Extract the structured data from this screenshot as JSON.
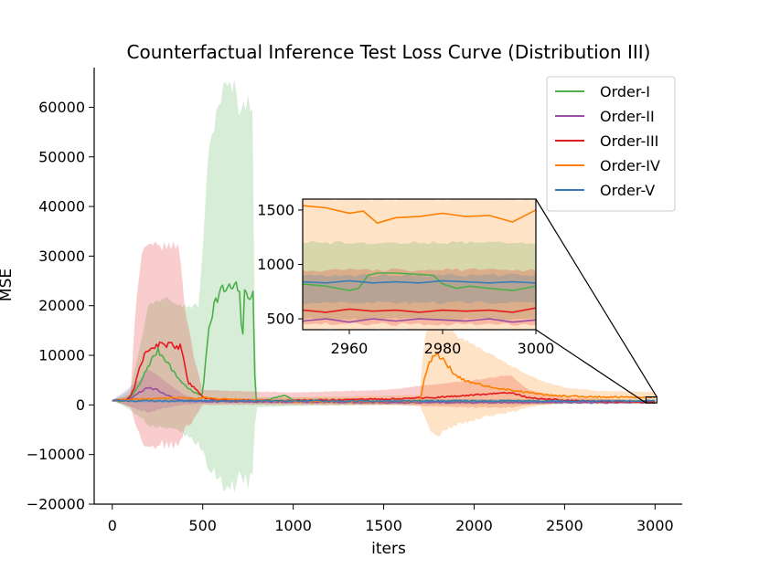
{
  "chart_data": {
    "type": "line",
    "title": "Counterfactual Inference Test Loss Curve (Distribution III)",
    "xlabel": "iters",
    "ylabel": "MSE",
    "xlim": [
      -100,
      3150
    ],
    "ylim": [
      -20000,
      68000
    ],
    "x_ticks": [
      0,
      500,
      1000,
      1500,
      2000,
      2500,
      3000
    ],
    "y_ticks": [
      -20000,
      -10000,
      0,
      10000,
      20000,
      30000,
      40000,
      50000,
      60000
    ],
    "legend_position": "top-right",
    "series": [
      {
        "name": "Order-I",
        "color": "#4daf4a",
        "points": [
          [
            0,
            900
          ],
          [
            50,
            700
          ],
          [
            100,
            1500
          ],
          [
            150,
            4000
          ],
          [
            200,
            8000
          ],
          [
            250,
            11000
          ],
          [
            300,
            9000
          ],
          [
            350,
            6000
          ],
          [
            400,
            4000
          ],
          [
            450,
            2500
          ],
          [
            500,
            2000
          ],
          [
            530,
            15000
          ],
          [
            560,
            20000
          ],
          [
            600,
            23000
          ],
          [
            650,
            23500
          ],
          [
            700,
            23500
          ],
          [
            720,
            13000
          ],
          [
            730,
            22000
          ],
          [
            760,
            22500
          ],
          [
            780,
            22000
          ],
          [
            790,
            500
          ],
          [
            850,
            800
          ],
          [
            900,
            1500
          ],
          [
            950,
            2000
          ],
          [
            1000,
            900
          ],
          [
            1200,
            800
          ],
          [
            1500,
            700
          ],
          [
            2000,
            700
          ],
          [
            2500,
            700
          ],
          [
            2950,
            700
          ],
          [
            3000,
            800
          ]
        ],
        "band": [
          [
            0,
            900,
            900
          ],
          [
            100,
            3000,
            -1000
          ],
          [
            200,
            20000,
            -4000
          ],
          [
            300,
            22000,
            -5000
          ],
          [
            400,
            20000,
            -6000
          ],
          [
            480,
            20000,
            -8000
          ],
          [
            530,
            50000,
            -12000
          ],
          [
            580,
            60000,
            -15000
          ],
          [
            620,
            64000,
            -16000
          ],
          [
            680,
            64000,
            -16000
          ],
          [
            700,
            60000,
            -15000
          ],
          [
            740,
            61000,
            -15500
          ],
          [
            780,
            61000,
            -15500
          ],
          [
            790,
            1500,
            -500
          ],
          [
            1000,
            1500,
            -200
          ],
          [
            1500,
            1200,
            0
          ],
          [
            2000,
            1200,
            100
          ],
          [
            2500,
            1200,
            150
          ],
          [
            3000,
            1200,
            200
          ]
        ]
      },
      {
        "name": "Order-II",
        "color": "#984ea3",
        "points": [
          [
            0,
            900
          ],
          [
            100,
            1200
          ],
          [
            150,
            2500
          ],
          [
            200,
            3500
          ],
          [
            250,
            3000
          ],
          [
            300,
            2000
          ],
          [
            350,
            1200
          ],
          [
            400,
            900
          ],
          [
            500,
            700
          ],
          [
            1000,
            600
          ],
          [
            1500,
            500
          ],
          [
            2000,
            500
          ],
          [
            2500,
            500
          ],
          [
            3000,
            500
          ]
        ],
        "band": [
          [
            0,
            900,
            900
          ],
          [
            150,
            5000,
            -1000
          ],
          [
            200,
            7000,
            -1500
          ],
          [
            250,
            6000,
            -1000
          ],
          [
            300,
            4500,
            -500
          ],
          [
            400,
            2000,
            0
          ],
          [
            500,
            1000,
            300
          ],
          [
            3000,
            800,
            300
          ]
        ]
      },
      {
        "name": "Order-III",
        "color": "#e41a1c",
        "points": [
          [
            0,
            900
          ],
          [
            80,
            1000
          ],
          [
            120,
            3000
          ],
          [
            150,
            8000
          ],
          [
            200,
            11500
          ],
          [
            250,
            12000
          ],
          [
            300,
            12000
          ],
          [
            350,
            12000
          ],
          [
            380,
            11500
          ],
          [
            400,
            8000
          ],
          [
            420,
            4500
          ],
          [
            450,
            3500
          ],
          [
            480,
            2500
          ],
          [
            500,
            1500
          ],
          [
            600,
            1000
          ],
          [
            800,
            900
          ],
          [
            1000,
            900
          ],
          [
            1200,
            1000
          ],
          [
            1500,
            1200
          ],
          [
            1800,
            1500
          ],
          [
            2000,
            2000
          ],
          [
            2200,
            2500
          ],
          [
            2300,
            1500
          ],
          [
            2500,
            900
          ],
          [
            2700,
            700
          ],
          [
            3000,
            600
          ]
        ],
        "band": [
          [
            0,
            900,
            900
          ],
          [
            100,
            2000,
            -500
          ],
          [
            130,
            20000,
            -4000
          ],
          [
            160,
            30000,
            -7000
          ],
          [
            200,
            32000,
            -8000
          ],
          [
            300,
            32000,
            -8000
          ],
          [
            370,
            32000,
            -8000
          ],
          [
            400,
            20000,
            -5000
          ],
          [
            450,
            10000,
            -3000
          ],
          [
            500,
            3000,
            0
          ],
          [
            1000,
            2500,
            0
          ],
          [
            1500,
            3000,
            0
          ],
          [
            2000,
            5000,
            -500
          ],
          [
            2200,
            6000,
            -500
          ],
          [
            2300,
            3000,
            0
          ],
          [
            2500,
            1500,
            300
          ],
          [
            3000,
            900,
            300
          ]
        ]
      },
      {
        "name": "Order-IV",
        "color": "#ff7f00",
        "points": [
          [
            0,
            900
          ],
          [
            200,
            1200
          ],
          [
            400,
            1500
          ],
          [
            450,
            1200
          ],
          [
            500,
            1500
          ],
          [
            600,
            1200
          ],
          [
            800,
            900
          ],
          [
            1000,
            700
          ],
          [
            1500,
            700
          ],
          [
            1700,
            800
          ],
          [
            1730,
            6000
          ],
          [
            1760,
            9000
          ],
          [
            1790,
            10000
          ],
          [
            1820,
            9500
          ],
          [
            1850,
            8000
          ],
          [
            1900,
            6000
          ],
          [
            1950,
            5000
          ],
          [
            2000,
            4500
          ],
          [
            2100,
            3500
          ],
          [
            2200,
            3000
          ],
          [
            2300,
            2500
          ],
          [
            2400,
            2000
          ],
          [
            2500,
            1800
          ],
          [
            2700,
            1600
          ],
          [
            2900,
            1550
          ],
          [
            3000,
            1500
          ]
        ],
        "band": [
          [
            0,
            900,
            900
          ],
          [
            1000,
            1500,
            300
          ],
          [
            1700,
            2000,
            0
          ],
          [
            1720,
            12000,
            -2000
          ],
          [
            1760,
            19000,
            -5000
          ],
          [
            1800,
            20000,
            -6000
          ],
          [
            1850,
            17000,
            -5000
          ],
          [
            1900,
            14000,
            -4000
          ],
          [
            2000,
            12000,
            -3000
          ],
          [
            2100,
            10000,
            -2000
          ],
          [
            2200,
            8000,
            -1500
          ],
          [
            2300,
            6000,
            -500
          ],
          [
            2400,
            4500,
            0
          ],
          [
            2500,
            3500,
            500
          ],
          [
            2700,
            2800,
            500
          ],
          [
            2900,
            2700,
            500
          ],
          [
            3000,
            2700,
            500
          ]
        ]
      },
      {
        "name": "Order-V",
        "color": "#377eb8",
        "points": [
          [
            0,
            900
          ],
          [
            100,
            800
          ],
          [
            200,
            800
          ],
          [
            500,
            800
          ],
          [
            1000,
            800
          ],
          [
            1500,
            800
          ],
          [
            2000,
            800
          ],
          [
            2500,
            800
          ],
          [
            3000,
            800
          ]
        ],
        "band": [
          [
            0,
            900,
            900
          ],
          [
            100,
            1200,
            500
          ],
          [
            500,
            1200,
            500
          ],
          [
            1000,
            1100,
            500
          ],
          [
            1500,
            1100,
            500
          ],
          [
            2000,
            1100,
            500
          ],
          [
            2500,
            1000,
            600
          ],
          [
            3000,
            1000,
            600
          ]
        ]
      }
    ],
    "inset": {
      "xlim": [
        2950,
        3000
      ],
      "ylim": [
        400,
        1600
      ],
      "x_ticks": [
        2960,
        2980,
        3000
      ],
      "y_ticks": [
        500,
        1000,
        1500
      ],
      "series": [
        {
          "name": "Order-I",
          "color": "#4daf4a",
          "points": [
            [
              2950,
              820
            ],
            [
              2955,
              800
            ],
            [
              2960,
              760
            ],
            [
              2962,
              780
            ],
            [
              2964,
              900
            ],
            [
              2966,
              920
            ],
            [
              2970,
              920
            ],
            [
              2974,
              910
            ],
            [
              2978,
              900
            ],
            [
              2980,
              820
            ],
            [
              2983,
              780
            ],
            [
              2986,
              800
            ],
            [
              2990,
              780
            ],
            [
              2995,
              760
            ],
            [
              3000,
              800
            ]
          ]
        },
        {
          "name": "Order-II",
          "color": "#984ea3",
          "points": [
            [
              2950,
              480
            ],
            [
              2955,
              500
            ],
            [
              2960,
              470
            ],
            [
              2965,
              500
            ],
            [
              2970,
              480
            ],
            [
              2975,
              500
            ],
            [
              2980,
              490
            ],
            [
              2985,
              480
            ],
            [
              2990,
              500
            ],
            [
              2995,
              470
            ],
            [
              3000,
              490
            ]
          ]
        },
        {
          "name": "Order-III",
          "color": "#e41a1c",
          "points": [
            [
              2950,
              580
            ],
            [
              2955,
              560
            ],
            [
              2960,
              590
            ],
            [
              2965,
              570
            ],
            [
              2970,
              580
            ],
            [
              2975,
              560
            ],
            [
              2980,
              580
            ],
            [
              2985,
              570
            ],
            [
              2990,
              580
            ],
            [
              2995,
              560
            ],
            [
              3000,
              600
            ]
          ]
        },
        {
          "name": "Order-IV",
          "color": "#ff7f00",
          "points": [
            [
              2950,
              1540
            ],
            [
              2955,
              1520
            ],
            [
              2960,
              1470
            ],
            [
              2963,
              1490
            ],
            [
              2966,
              1380
            ],
            [
              2970,
              1430
            ],
            [
              2975,
              1440
            ],
            [
              2980,
              1470
            ],
            [
              2985,
              1440
            ],
            [
              2990,
              1450
            ],
            [
              2995,
              1390
            ],
            [
              3000,
              1500
            ]
          ]
        },
        {
          "name": "Order-V",
          "color": "#377eb8",
          "points": [
            [
              2950,
              840
            ],
            [
              2955,
              830
            ],
            [
              2960,
              850
            ],
            [
              2965,
              830
            ],
            [
              2970,
              840
            ],
            [
              2975,
              830
            ],
            [
              2980,
              850
            ],
            [
              2985,
              840
            ],
            [
              2990,
              830
            ],
            [
              2995,
              840
            ],
            [
              3000,
              830
            ]
          ]
        }
      ],
      "bands": [
        {
          "color": "#ff7f00",
          "upper": 1600,
          "lower": 400
        },
        {
          "color": "#4daf4a",
          "upper": 1200,
          "lower": 500
        },
        {
          "color": "#e41a1c",
          "upper": 950,
          "lower": 450
        },
        {
          "color": "#377eb8",
          "upper": 900,
          "lower": 650
        }
      ]
    }
  }
}
